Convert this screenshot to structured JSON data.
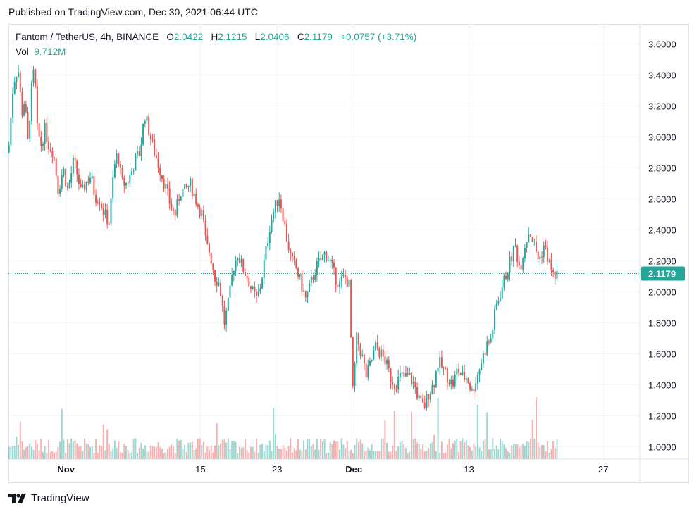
{
  "header": {
    "published": "Published on TradingView.com, Dec 30, 2021 06:44 UTC"
  },
  "legend": {
    "symbol": "Fantom / TetherUS, 4h, BINANCE",
    "open_label": "O",
    "open": "2.0422",
    "high_label": "H",
    "high": "2.1215",
    "low_label": "L",
    "low": "2.0406",
    "close_label": "C",
    "close": "2.1179",
    "change": "+0.0757 (+3.71%)",
    "vol_label": "Vol",
    "vol": "9.712M"
  },
  "footer": {
    "brand": "TradingView",
    "logo_icon": "tradingview-logo-icon"
  },
  "colors": {
    "up": "#26a69a",
    "down": "#ef5350",
    "grid": "#f0f3fa",
    "axis_text": "#131722"
  },
  "chart_data": {
    "type": "candlestick",
    "title": "Fantom / TetherUS, 4h, BINANCE",
    "y_ticks": [
      3.6,
      3.4,
      3.2,
      3.0,
      2.8,
      2.6,
      2.4,
      2.2,
      2.0,
      1.8,
      1.6,
      1.4,
      1.2,
      1.0
    ],
    "y_tick_labels": [
      "3.6000",
      "3.4000",
      "3.2000",
      "3.0000",
      "2.8000",
      "2.6000",
      "2.4000",
      "2.2000",
      "2.0000",
      "1.8000",
      "1.6000",
      "1.4000",
      "1.2000",
      "1.0000"
    ],
    "ylim": [
      0.92,
      3.73
    ],
    "x_ticks": [
      {
        "label": "Nov",
        "day": 1,
        "bold": true
      },
      {
        "label": "15",
        "day": 15,
        "bold": false
      },
      {
        "label": "23",
        "day": 23,
        "bold": false
      },
      {
        "label": "Dec",
        "day": 31,
        "bold": true
      },
      {
        "label": "13",
        "day": 43,
        "bold": false
      },
      {
        "label": "27",
        "day": 57,
        "bold": false
      }
    ],
    "xlim_days": [
      -5.0,
      60.8
    ],
    "last_price": "2.1179",
    "last_price_value": 2.1179,
    "grid": true,
    "closes": [
      [
        -5,
        2.9
      ],
      [
        -4.5,
        3.35
      ],
      [
        -4,
        3.45
      ],
      [
        -3.6,
        3.15
      ],
      [
        -3.3,
        3.25
      ],
      [
        -3,
        2.95
      ],
      [
        -2.6,
        3.3
      ],
      [
        -2.3,
        3.45
      ],
      [
        -2,
        3.05
      ],
      [
        -1.6,
        2.95
      ],
      [
        -1.2,
        3.05
      ],
      [
        -0.8,
        2.95
      ],
      [
        -0.3,
        2.9
      ],
      [
        0.2,
        2.65
      ],
      [
        0.7,
        2.8
      ],
      [
        1.2,
        2.65
      ],
      [
        1.8,
        2.85
      ],
      [
        2.2,
        2.75
      ],
      [
        2.6,
        2.62
      ],
      [
        3.0,
        2.7
      ],
      [
        3.6,
        2.75
      ],
      [
        4.0,
        2.62
      ],
      [
        4.5,
        2.6
      ],
      [
        5.0,
        2.5
      ],
      [
        5.5,
        2.45
      ],
      [
        6.0,
        2.8
      ],
      [
        6.4,
        2.9
      ],
      [
        6.8,
        2.7
      ],
      [
        7.3,
        2.7
      ],
      [
        7.7,
        2.75
      ],
      [
        8.2,
        2.85
      ],
      [
        8.7,
        2.9
      ],
      [
        9.2,
        3.15
      ],
      [
        9.6,
        3.05
      ],
      [
        10.0,
        2.95
      ],
      [
        10.5,
        2.85
      ],
      [
        11.0,
        2.75
      ],
      [
        11.5,
        2.65
      ],
      [
        11.9,
        2.55
      ],
      [
        12.4,
        2.5
      ],
      [
        12.9,
        2.65
      ],
      [
        13.4,
        2.65
      ],
      [
        13.9,
        2.7
      ],
      [
        14.4,
        2.62
      ],
      [
        14.8,
        2.55
      ],
      [
        15.2,
        2.5
      ],
      [
        15.6,
        2.3
      ],
      [
        16.0,
        2.25
      ],
      [
        16.5,
        2.1
      ],
      [
        17.0,
        2.05
      ],
      [
        17.5,
        1.8
      ],
      [
        18.0,
        1.95
      ],
      [
        18.4,
        2.15
      ],
      [
        18.9,
        2.25
      ],
      [
        19.4,
        2.15
      ],
      [
        19.9,
        2.1
      ],
      [
        20.4,
        2.0
      ],
      [
        20.9,
        1.95
      ],
      [
        21.3,
        2.05
      ],
      [
        21.8,
        2.25
      ],
      [
        22.3,
        2.45
      ],
      [
        22.8,
        2.55
      ],
      [
        23.2,
        2.62
      ],
      [
        23.6,
        2.5
      ],
      [
        24.0,
        2.35
      ],
      [
        24.5,
        2.2
      ],
      [
        25.0,
        2.15
      ],
      [
        25.5,
        2.05
      ],
      [
        26.0,
        1.95
      ],
      [
        26.5,
        2.05
      ],
      [
        27.0,
        2.15
      ],
      [
        27.5,
        2.2
      ],
      [
        28.0,
        2.25
      ],
      [
        28.5,
        2.2
      ],
      [
        29.0,
        2.1
      ],
      [
        29.5,
        2.05
      ],
      [
        30.0,
        2.1
      ],
      [
        30.5,
        2.05
      ],
      [
        30.9,
        1.35
      ],
      [
        31.3,
        1.7
      ],
      [
        31.8,
        1.6
      ],
      [
        32.3,
        1.45
      ],
      [
        32.8,
        1.55
      ],
      [
        33.3,
        1.65
      ],
      [
        33.8,
        1.6
      ],
      [
        34.3,
        1.55
      ],
      [
        34.8,
        1.45
      ],
      [
        35.3,
        1.4
      ],
      [
        35.8,
        1.45
      ],
      [
        36.3,
        1.45
      ],
      [
        36.8,
        1.45
      ],
      [
        37.3,
        1.4
      ],
      [
        37.8,
        1.3
      ],
      [
        38.3,
        1.25
      ],
      [
        38.8,
        1.35
      ],
      [
        39.3,
        1.4
      ],
      [
        39.8,
        1.55
      ],
      [
        40.3,
        1.5
      ],
      [
        40.8,
        1.45
      ],
      [
        41.3,
        1.4
      ],
      [
        41.8,
        1.5
      ],
      [
        42.3,
        1.45
      ],
      [
        42.8,
        1.45
      ],
      [
        43.3,
        1.35
      ],
      [
        43.8,
        1.45
      ],
      [
        44.3,
        1.55
      ],
      [
        44.8,
        1.65
      ],
      [
        45.3,
        1.7
      ],
      [
        45.8,
        1.9
      ],
      [
        46.3,
        2.0
      ],
      [
        46.8,
        2.1
      ],
      [
        47.3,
        2.2
      ],
      [
        47.8,
        2.3
      ],
      [
        48.3,
        2.15
      ],
      [
        48.8,
        2.3
      ],
      [
        49.3,
        2.4
      ],
      [
        49.8,
        2.3
      ],
      [
        50.3,
        2.2
      ],
      [
        50.8,
        2.3
      ],
      [
        51.3,
        2.2
      ],
      [
        51.8,
        2.1
      ],
      [
        52.3,
        2.12
      ]
    ]
  }
}
